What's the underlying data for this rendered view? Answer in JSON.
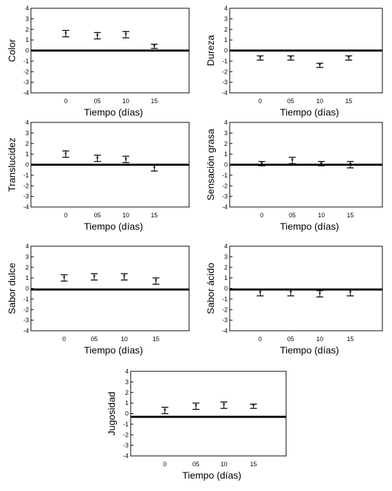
{
  "chart_data": [
    {
      "type": "scatter",
      "ylabel": "Color",
      "xlabel": "Tiempo (días)",
      "categories": [
        "0",
        "05",
        "10",
        "15"
      ],
      "values": [
        1.6,
        1.4,
        1.5,
        0.4
      ],
      "error": [
        0.3,
        0.3,
        0.3,
        0.2
      ],
      "ylim": [
        -4,
        4
      ],
      "yticks": [
        "4",
        "3",
        "2",
        "1",
        "0",
        "-1",
        "-2",
        "-3",
        "-4"
      ],
      "reference_line": 0,
      "grid": false
    },
    {
      "type": "scatter",
      "ylabel": "Dureza",
      "xlabel": "Tiempo (días)",
      "categories": [
        "0",
        "05",
        "10",
        "15"
      ],
      "values": [
        -0.7,
        -0.7,
        -1.4,
        -0.7
      ],
      "error": [
        0.2,
        0.2,
        0.2,
        0.2
      ],
      "ylim": [
        -4,
        4
      ],
      "yticks": [
        "4",
        "3",
        "2",
        "1",
        "0",
        "-1",
        "-2",
        "-3",
        "-4"
      ],
      "reference_line": 0,
      "grid": false
    },
    {
      "type": "scatter",
      "ylabel": "Translucidez",
      "xlabel": "Tiempo (días)",
      "categories": [
        "0",
        "05",
        "10",
        "15"
      ],
      "values": [
        1.0,
        0.6,
        0.5,
        -0.3
      ],
      "error": [
        0.3,
        0.3,
        0.3,
        0.3
      ],
      "ylim": [
        -4,
        4
      ],
      "yticks": [
        "4",
        "3",
        "2",
        "1",
        "0",
        "-1",
        "-2",
        "-3",
        "-4"
      ],
      "reference_line": 0,
      "grid": false
    },
    {
      "type": "scatter",
      "ylabel": "Sensación grasa",
      "xlabel": "Tiempo (días)",
      "categories": [
        "0",
        "05",
        "10",
        "15"
      ],
      "values": [
        0.1,
        0.4,
        0.1,
        0.0
      ],
      "error": [
        0.2,
        0.3,
        0.2,
        0.3
      ],
      "ylim": [
        -4,
        4
      ],
      "yticks": [
        "4",
        "3",
        "2",
        "1",
        "0",
        "-1",
        "-2",
        "-3",
        "-4"
      ],
      "reference_line": 0,
      "grid": false
    },
    {
      "type": "scatter",
      "ylabel": "Sabor dulce",
      "xlabel": "Tiempo (días)",
      "categories": [
        "0",
        "05",
        "10",
        "15"
      ],
      "values": [
        1.0,
        1.1,
        1.1,
        0.7
      ],
      "error": [
        0.3,
        0.3,
        0.3,
        0.3
      ],
      "ylim": [
        -4,
        4
      ],
      "yticks": [
        "4",
        "3",
        "2",
        "1",
        "0",
        "-1",
        "-2",
        "-3",
        "-4"
      ],
      "reference_line": -0.1,
      "grid": false
    },
    {
      "type": "scatter",
      "ylabel": "Sabor ácido",
      "xlabel": "Tiempo (días)",
      "categories": [
        "0",
        "05",
        "10",
        "15"
      ],
      "values": [
        -0.4,
        -0.4,
        -0.5,
        -0.4
      ],
      "error": [
        0.3,
        0.3,
        0.3,
        0.3
      ],
      "ylim": [
        -4,
        4
      ],
      "yticks": [
        "4",
        "3",
        "2",
        "1",
        "0",
        "-1",
        "-2",
        "-3",
        "-4"
      ],
      "reference_line": -0.1,
      "grid": false
    },
    {
      "type": "scatter",
      "ylabel": "Jugosidad",
      "xlabel": "Tiempo (días)",
      "categories": [
        "0",
        "05",
        "10",
        "15"
      ],
      "values": [
        0.3,
        0.7,
        0.8,
        0.7
      ],
      "error": [
        0.3,
        0.3,
        0.3,
        0.2
      ],
      "ylim": [
        -4,
        4
      ],
      "yticks": [
        "4",
        "3",
        "2",
        "1",
        "0",
        "-1",
        "-2",
        "-3",
        "-4"
      ],
      "reference_line": -0.3,
      "grid": false
    }
  ]
}
